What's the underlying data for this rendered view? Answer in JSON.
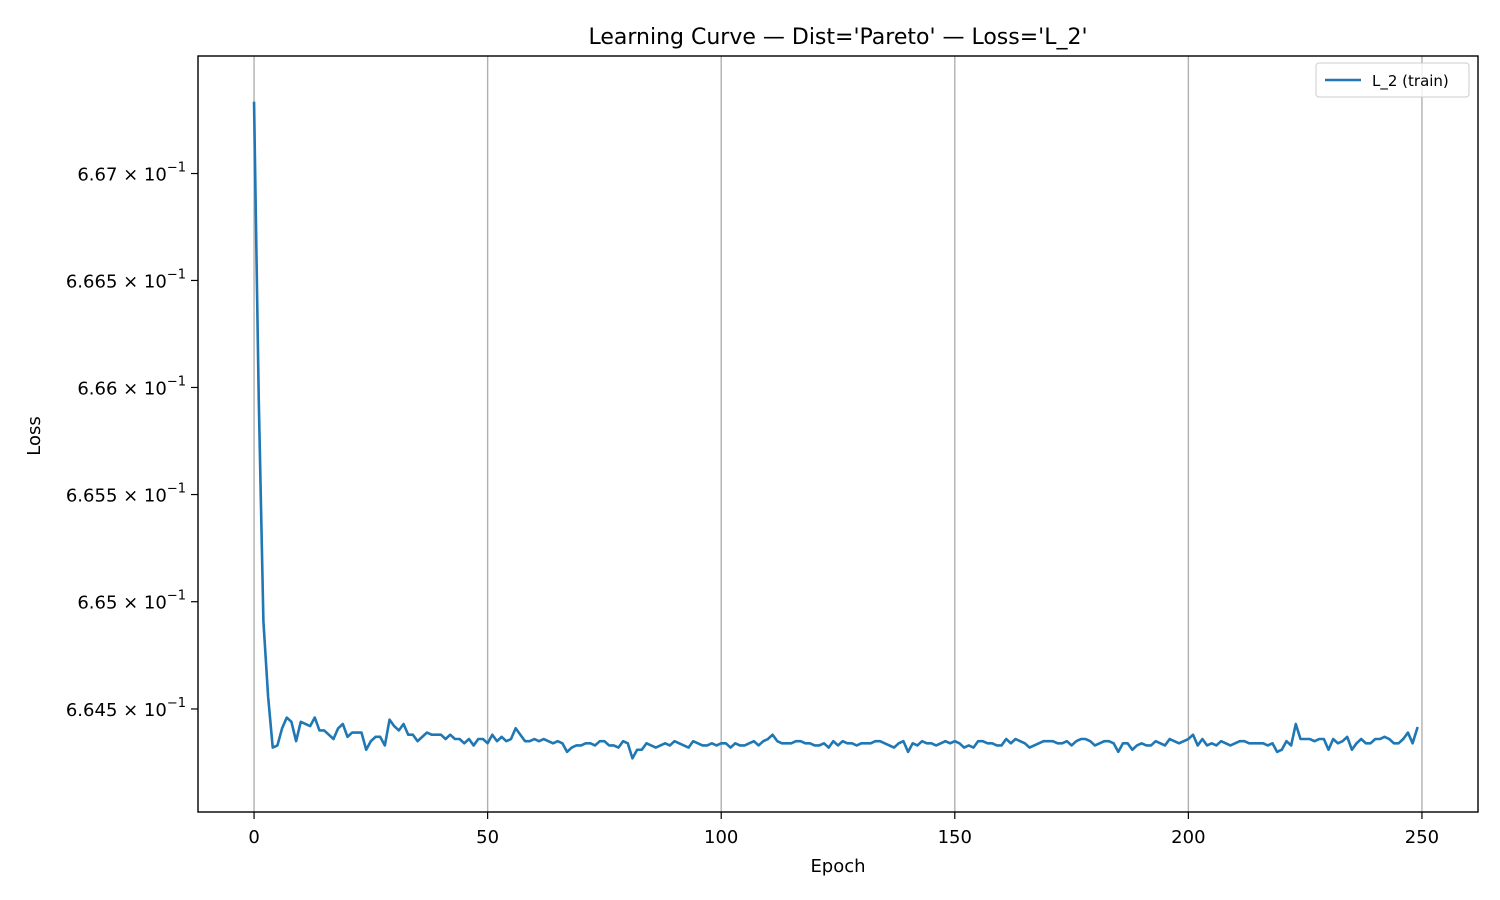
{
  "chart_data": {
    "type": "line",
    "title": "Learning Curve — Dist='Pareto' — Loss='L_2'",
    "xlabel": "Epoch",
    "ylabel": "Loss",
    "xlim": [
      -12,
      262
    ],
    "ylim": [
      0.66402,
      0.66755
    ],
    "yscale": "log",
    "grid": "x",
    "legend_placement": "top-right",
    "x_ticks": [
      0,
      50,
      100,
      150,
      200,
      250
    ],
    "x_tick_labels": [
      "0",
      "50",
      "100",
      "150",
      "200",
      "250"
    ],
    "y_ticks": [
      {
        "value": 0.6645,
        "mantissa": "6.645",
        "times": "×",
        "base": "10",
        "exponent": "−1"
      },
      {
        "value": 0.665,
        "mantissa": "6.65",
        "times": "×",
        "base": "10",
        "exponent": "−1"
      },
      {
        "value": 0.6655,
        "mantissa": "6.655",
        "times": "×",
        "base": "10",
        "exponent": "−1"
      },
      {
        "value": 0.666,
        "mantissa": "6.66",
        "times": "×",
        "base": "10",
        "exponent": "−1"
      },
      {
        "value": 0.6665,
        "mantissa": "6.665",
        "times": "×",
        "base": "10",
        "exponent": "−1"
      },
      {
        "value": 0.667,
        "mantissa": "6.67",
        "times": "×",
        "base": "10",
        "exponent": "−1"
      }
    ],
    "series": [
      {
        "name": "L_2 (train)",
        "color": "#1f77b4",
        "x_start": 0,
        "x_step": 1,
        "values": [
          0.66733,
          0.66595,
          0.66491,
          0.66456,
          0.66432,
          0.66433,
          0.66441,
          0.66446,
          0.66444,
          0.66435,
          0.66444,
          0.66443,
          0.66442,
          0.66446,
          0.6644,
          0.6644,
          0.66438,
          0.66436,
          0.66441,
          0.66443,
          0.66437,
          0.66439,
          0.66439,
          0.66439,
          0.66431,
          0.66435,
          0.66437,
          0.66437,
          0.66433,
          0.66445,
          0.66442,
          0.6644,
          0.66443,
          0.66438,
          0.66438,
          0.66435,
          0.66437,
          0.66439,
          0.66438,
          0.66438,
          0.66438,
          0.66436,
          0.66438,
          0.66436,
          0.66436,
          0.66434,
          0.66436,
          0.66433,
          0.66436,
          0.66436,
          0.66434,
          0.66438,
          0.66435,
          0.66437,
          0.66435,
          0.66436,
          0.66441,
          0.66438,
          0.66435,
          0.66435,
          0.66436,
          0.66435,
          0.66436,
          0.66435,
          0.66434,
          0.66435,
          0.66434,
          0.6643,
          0.66432,
          0.66433,
          0.66433,
          0.66434,
          0.66434,
          0.66433,
          0.66435,
          0.66435,
          0.66433,
          0.66433,
          0.66432,
          0.66435,
          0.66434,
          0.66427,
          0.66431,
          0.66431,
          0.66434,
          0.66433,
          0.66432,
          0.66433,
          0.66434,
          0.66433,
          0.66435,
          0.66434,
          0.66433,
          0.66432,
          0.66435,
          0.66434,
          0.66433,
          0.66433,
          0.66434,
          0.66433,
          0.66434,
          0.66434,
          0.66432,
          0.66434,
          0.66433,
          0.66433,
          0.66434,
          0.66435,
          0.66433,
          0.66435,
          0.66436,
          0.66438,
          0.66435,
          0.66434,
          0.66434,
          0.66434,
          0.66435,
          0.66435,
          0.66434,
          0.66434,
          0.66433,
          0.66433,
          0.66434,
          0.66432,
          0.66435,
          0.66433,
          0.66435,
          0.66434,
          0.66434,
          0.66433,
          0.66434,
          0.66434,
          0.66434,
          0.66435,
          0.66435,
          0.66434,
          0.66433,
          0.66432,
          0.66434,
          0.66435,
          0.6643,
          0.66434,
          0.66433,
          0.66435,
          0.66434,
          0.66434,
          0.66433,
          0.66434,
          0.66435,
          0.66434,
          0.66435,
          0.66434,
          0.66432,
          0.66433,
          0.66432,
          0.66435,
          0.66435,
          0.66434,
          0.66434,
          0.66433,
          0.66433,
          0.66436,
          0.66434,
          0.66436,
          0.66435,
          0.66434,
          0.66432,
          0.66433,
          0.66434,
          0.66435,
          0.66435,
          0.66435,
          0.66434,
          0.66434,
          0.66435,
          0.66433,
          0.66435,
          0.66436,
          0.66436,
          0.66435,
          0.66433,
          0.66434,
          0.66435,
          0.66435,
          0.66434,
          0.6643,
          0.66434,
          0.66434,
          0.66431,
          0.66433,
          0.66434,
          0.66433,
          0.66433,
          0.66435,
          0.66434,
          0.66433,
          0.66436,
          0.66435,
          0.66434,
          0.66435,
          0.66436,
          0.66438,
          0.66433,
          0.66436,
          0.66433,
          0.66434,
          0.66433,
          0.66435,
          0.66434,
          0.66433,
          0.66434,
          0.66435,
          0.66435,
          0.66434,
          0.66434,
          0.66434,
          0.66434,
          0.66433,
          0.66434,
          0.6643,
          0.66431,
          0.66435,
          0.66433,
          0.66443,
          0.66436,
          0.66436,
          0.66436,
          0.66435,
          0.66436,
          0.66436,
          0.66431,
          0.66436,
          0.66434,
          0.66435,
          0.66437,
          0.66431,
          0.66434,
          0.66436,
          0.66434,
          0.66434,
          0.66436,
          0.66436,
          0.66437,
          0.66436,
          0.66434,
          0.66434,
          0.66436,
          0.66439,
          0.66434,
          0.66441
        ]
      }
    ]
  }
}
